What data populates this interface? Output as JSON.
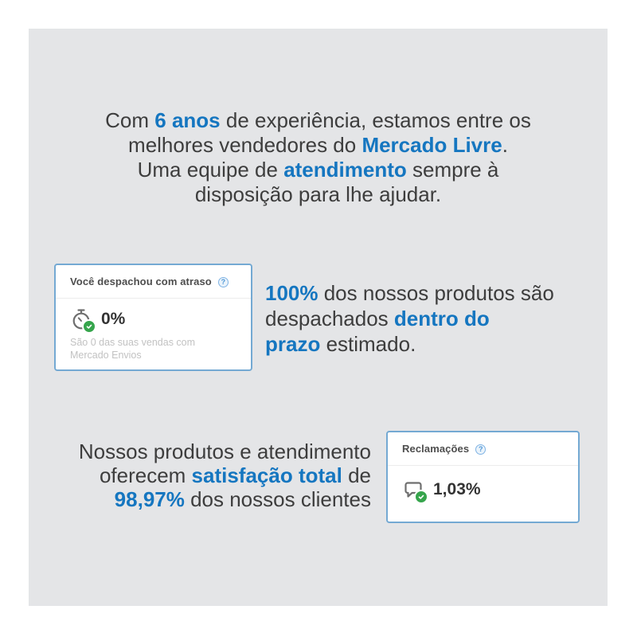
{
  "colors": {
    "panel_bg": "#e4e5e7",
    "accent_blue": "#1576c0",
    "body_text": "#3d3d3d",
    "card_border": "#74a9d3",
    "card_title": "#4d4d4d",
    "metric_value": "#333333",
    "muted_text": "#c2c2c2",
    "badge_green": "#36a54c",
    "icon_gray": "#6f6f6f"
  },
  "icons": {
    "help_glyph": "?",
    "shipping_icon": "stopwatch-check-icon",
    "claims_icon": "chat-bubble-check-icon"
  },
  "intro": {
    "segments": [
      {
        "t": "Com "
      },
      {
        "t": "6 anos",
        "hl": true
      },
      {
        "t": " de experiência, estamos entre os"
      },
      {
        "br": true
      },
      {
        "t": "melhores vendedores do "
      },
      {
        "t": "Mercado Livre",
        "hl": true
      },
      {
        "t": "."
      },
      {
        "br": true
      },
      {
        "t": "Uma equipe de "
      },
      {
        "t": "atendimento",
        "hl": true
      },
      {
        "t": " sempre à"
      },
      {
        "br": true
      },
      {
        "t": "disposição para lhe ajudar."
      }
    ]
  },
  "shipping_section": {
    "card": {
      "title": "Você despachou com atraso",
      "value": "0%",
      "footnote": "São 0 das suas vendas com Mercado Envios"
    },
    "text": {
      "segments": [
        {
          "t": "100%",
          "hl": true
        },
        {
          "t": " dos nossos produtos são"
        },
        {
          "br": true
        },
        {
          "t": "despachados "
        },
        {
          "t": "dentro do",
          "hl": true
        },
        {
          "br": true
        },
        {
          "t": "prazo",
          "hl": true
        },
        {
          "t": " estimado."
        }
      ]
    }
  },
  "claims_section": {
    "text": {
      "segments": [
        {
          "t": "Nossos produtos e atendimento"
        },
        {
          "br": true
        },
        {
          "t": "oferecem "
        },
        {
          "t": "satisfação total",
          "hl": true
        },
        {
          "t": " de"
        },
        {
          "br": true
        },
        {
          "t": "98,97%",
          "hl": true
        },
        {
          "t": " dos nossos clientes"
        }
      ]
    },
    "card": {
      "title": "Reclamações",
      "value": "1,03%"
    }
  }
}
